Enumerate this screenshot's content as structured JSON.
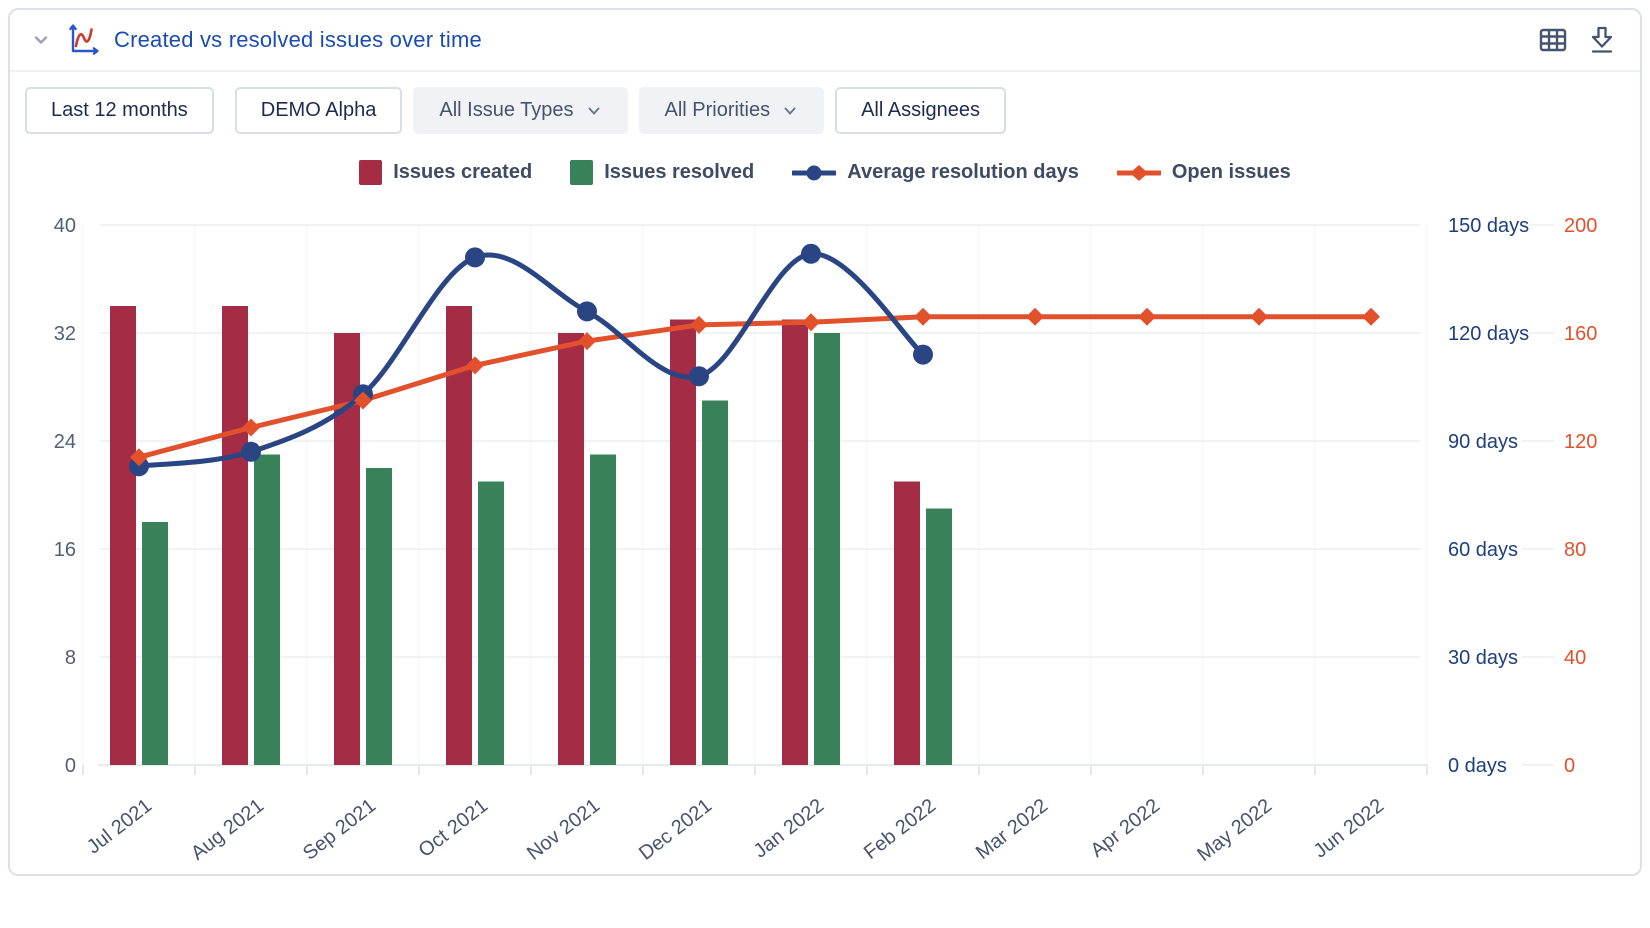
{
  "header": {
    "title": "Created vs resolved issues over time",
    "collapse_icon": "chevron-down",
    "chart_icon": "line-chart",
    "actions": [
      {
        "name": "table-view",
        "icon": "table-grid-icon"
      },
      {
        "name": "download",
        "icon": "download-icon"
      }
    ]
  },
  "filters": [
    {
      "label": "Last 12 months",
      "dropdown": false
    },
    {
      "label": "DEMO Alpha",
      "dropdown": false
    },
    {
      "label": "All Issue Types",
      "dropdown": true
    },
    {
      "label": "All Priorities",
      "dropdown": true
    },
    {
      "label": "All Assignees",
      "dropdown": false
    }
  ],
  "legend": [
    {
      "label": "Issues created",
      "marker": "square",
      "color": "#a52c45"
    },
    {
      "label": "Issues resolved",
      "marker": "square",
      "color": "#388159"
    },
    {
      "label": "Average resolution days",
      "marker": "line-circle",
      "color": "#2a4584"
    },
    {
      "label": "Open issues",
      "marker": "line-diamond",
      "color": "#e2512c"
    }
  ],
  "chart_data": {
    "type": "combo",
    "categories": [
      "Jul 2021",
      "Aug 2021",
      "Sep 2021",
      "Oct 2021",
      "Nov 2021",
      "Dec 2021",
      "Jan 2022",
      "Feb 2022",
      "Mar 2022",
      "Apr 2022",
      "May 2022",
      "Jun 2022"
    ],
    "series": [
      {
        "name": "Issues created",
        "type": "bar",
        "axis": "left",
        "color": "#a52c45",
        "values": [
          34,
          34,
          32,
          34,
          32,
          33,
          33,
          21,
          null,
          null,
          null,
          null
        ]
      },
      {
        "name": "Issues resolved",
        "type": "bar",
        "axis": "left",
        "color": "#388159",
        "values": [
          18,
          23,
          22,
          21,
          23,
          27,
          32,
          19,
          null,
          null,
          null,
          null
        ]
      },
      {
        "name": "Average resolution days",
        "type": "line-smooth",
        "axis": "days",
        "color": "#2a4584",
        "marker": "circle",
        "values": [
          83,
          87,
          103,
          141,
          126,
          108,
          142,
          114,
          null,
          null,
          null,
          null
        ]
      },
      {
        "name": "Open issues",
        "type": "line",
        "axis": "count",
        "color": "#e2512c",
        "marker": "diamond",
        "values": [
          114,
          125,
          135,
          148,
          157,
          163,
          164,
          166,
          166,
          166,
          166,
          166
        ]
      }
    ],
    "axes": {
      "left": {
        "min": 0,
        "max": 40,
        "tick_values": [
          0,
          8,
          16,
          24,
          32,
          40
        ],
        "tick_labels": [
          "0",
          "8",
          "16",
          "24",
          "32",
          "40"
        ]
      },
      "days": {
        "min": 0,
        "max": 150,
        "tick_labels": [
          "0 days",
          "30 days",
          "60 days",
          "90 days",
          "120 days",
          "150 days"
        ]
      },
      "count": {
        "min": 0,
        "max": 200,
        "tick_labels": [
          "0",
          "40",
          "80",
          "120",
          "160",
          "200"
        ]
      }
    },
    "grid": "horizontal",
    "legend_position": "top-center",
    "colors": {
      "grid": "#f1f2f4",
      "axis": "#e8ebee",
      "left_tick_text": "#525f74",
      "days_tick_text": "#1e3f7d",
      "count_tick_text": "#e2512c",
      "month_tick_text": "#47546e"
    }
  }
}
